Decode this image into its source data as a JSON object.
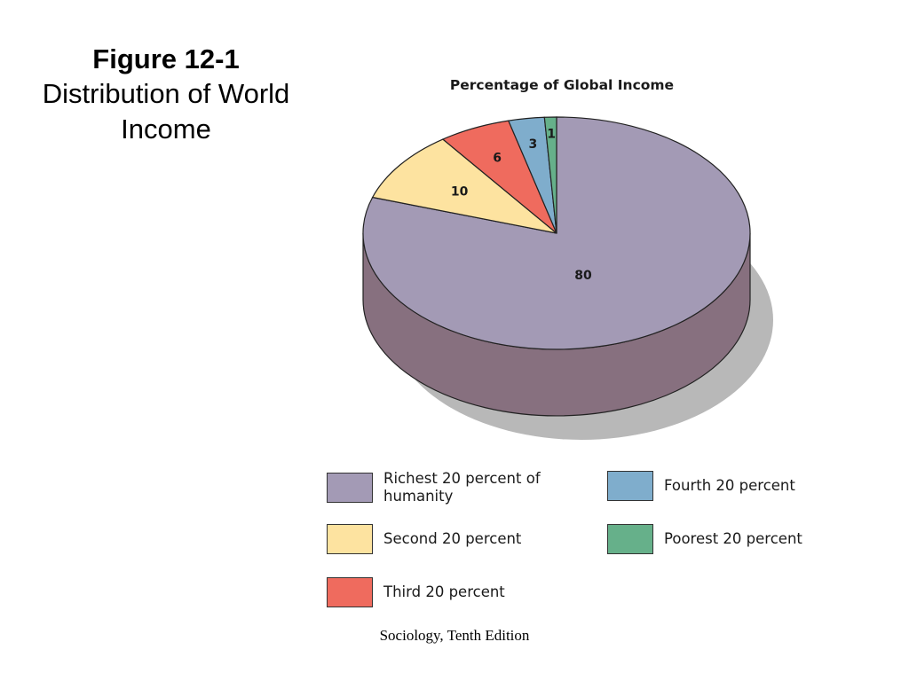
{
  "slide": {
    "figure_label": "Figure 12-1",
    "subtitle": "Distribution of World Income",
    "footer": "Sociology, Tenth Edition"
  },
  "chart_data": {
    "type": "pie",
    "title": "Percentage of Global Income",
    "three_d": true,
    "slices": [
      {
        "legend": "Richest 20 percent of humanity",
        "value": 80,
        "label": "80",
        "color": "#a39ab5",
        "side_color": "#87707f"
      },
      {
        "legend": "Second 20 percent",
        "value": 10,
        "label": "10",
        "color": "#fde3a0",
        "side_color": "#d8bf7a"
      },
      {
        "legend": "Third 20 percent",
        "value": 6,
        "label": "6",
        "color": "#ef6b5e",
        "side_color": "#c04a40"
      },
      {
        "legend": "Fourth 20 percent",
        "value": 3,
        "label": "3",
        "color": "#7fadcc",
        "side_color": "#5f8aa8"
      },
      {
        "legend": "Poorest 20 percent",
        "value": 1,
        "label": "1",
        "color": "#66b08a",
        "side_color": "#4a8c6a"
      }
    ],
    "legend_placement": "bottom"
  }
}
